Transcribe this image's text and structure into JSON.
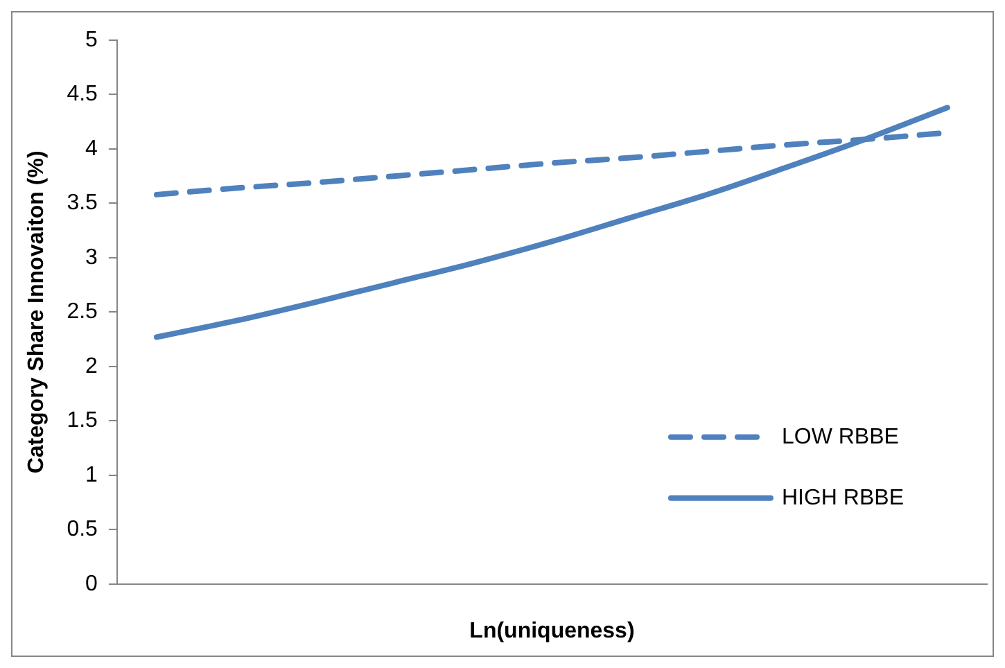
{
  "chart_data": {
    "type": "line",
    "xlabel": "Ln(uniqueness)",
    "ylabel": "Category Share Innovaiton (%)",
    "categories": [
      null,
      null,
      null,
      null,
      null,
      null,
      null,
      null,
      null,
      null,
      null
    ],
    "series": [
      {
        "name": "LOW RBBE",
        "color": "#4f81bd",
        "line_style": "dashed",
        "values": [
          3.58,
          3.64,
          3.69,
          3.75,
          3.81,
          3.87,
          3.92,
          3.98,
          4.04,
          4.09,
          4.15
        ]
      },
      {
        "name": "HIGH RBBE",
        "color": "#4f81bd",
        "line_style": "solid",
        "values": [
          2.27,
          2.42,
          2.59,
          2.77,
          2.95,
          3.15,
          3.37,
          3.59,
          3.84,
          4.1,
          4.38
        ]
      }
    ],
    "ylim": [
      0,
      5
    ],
    "yticks": [
      0,
      0.5,
      1,
      1.5,
      2,
      2.5,
      3,
      3.5,
      4,
      4.5,
      5
    ],
    "grid": false,
    "legend": "bottom right",
    "marker": "none"
  }
}
